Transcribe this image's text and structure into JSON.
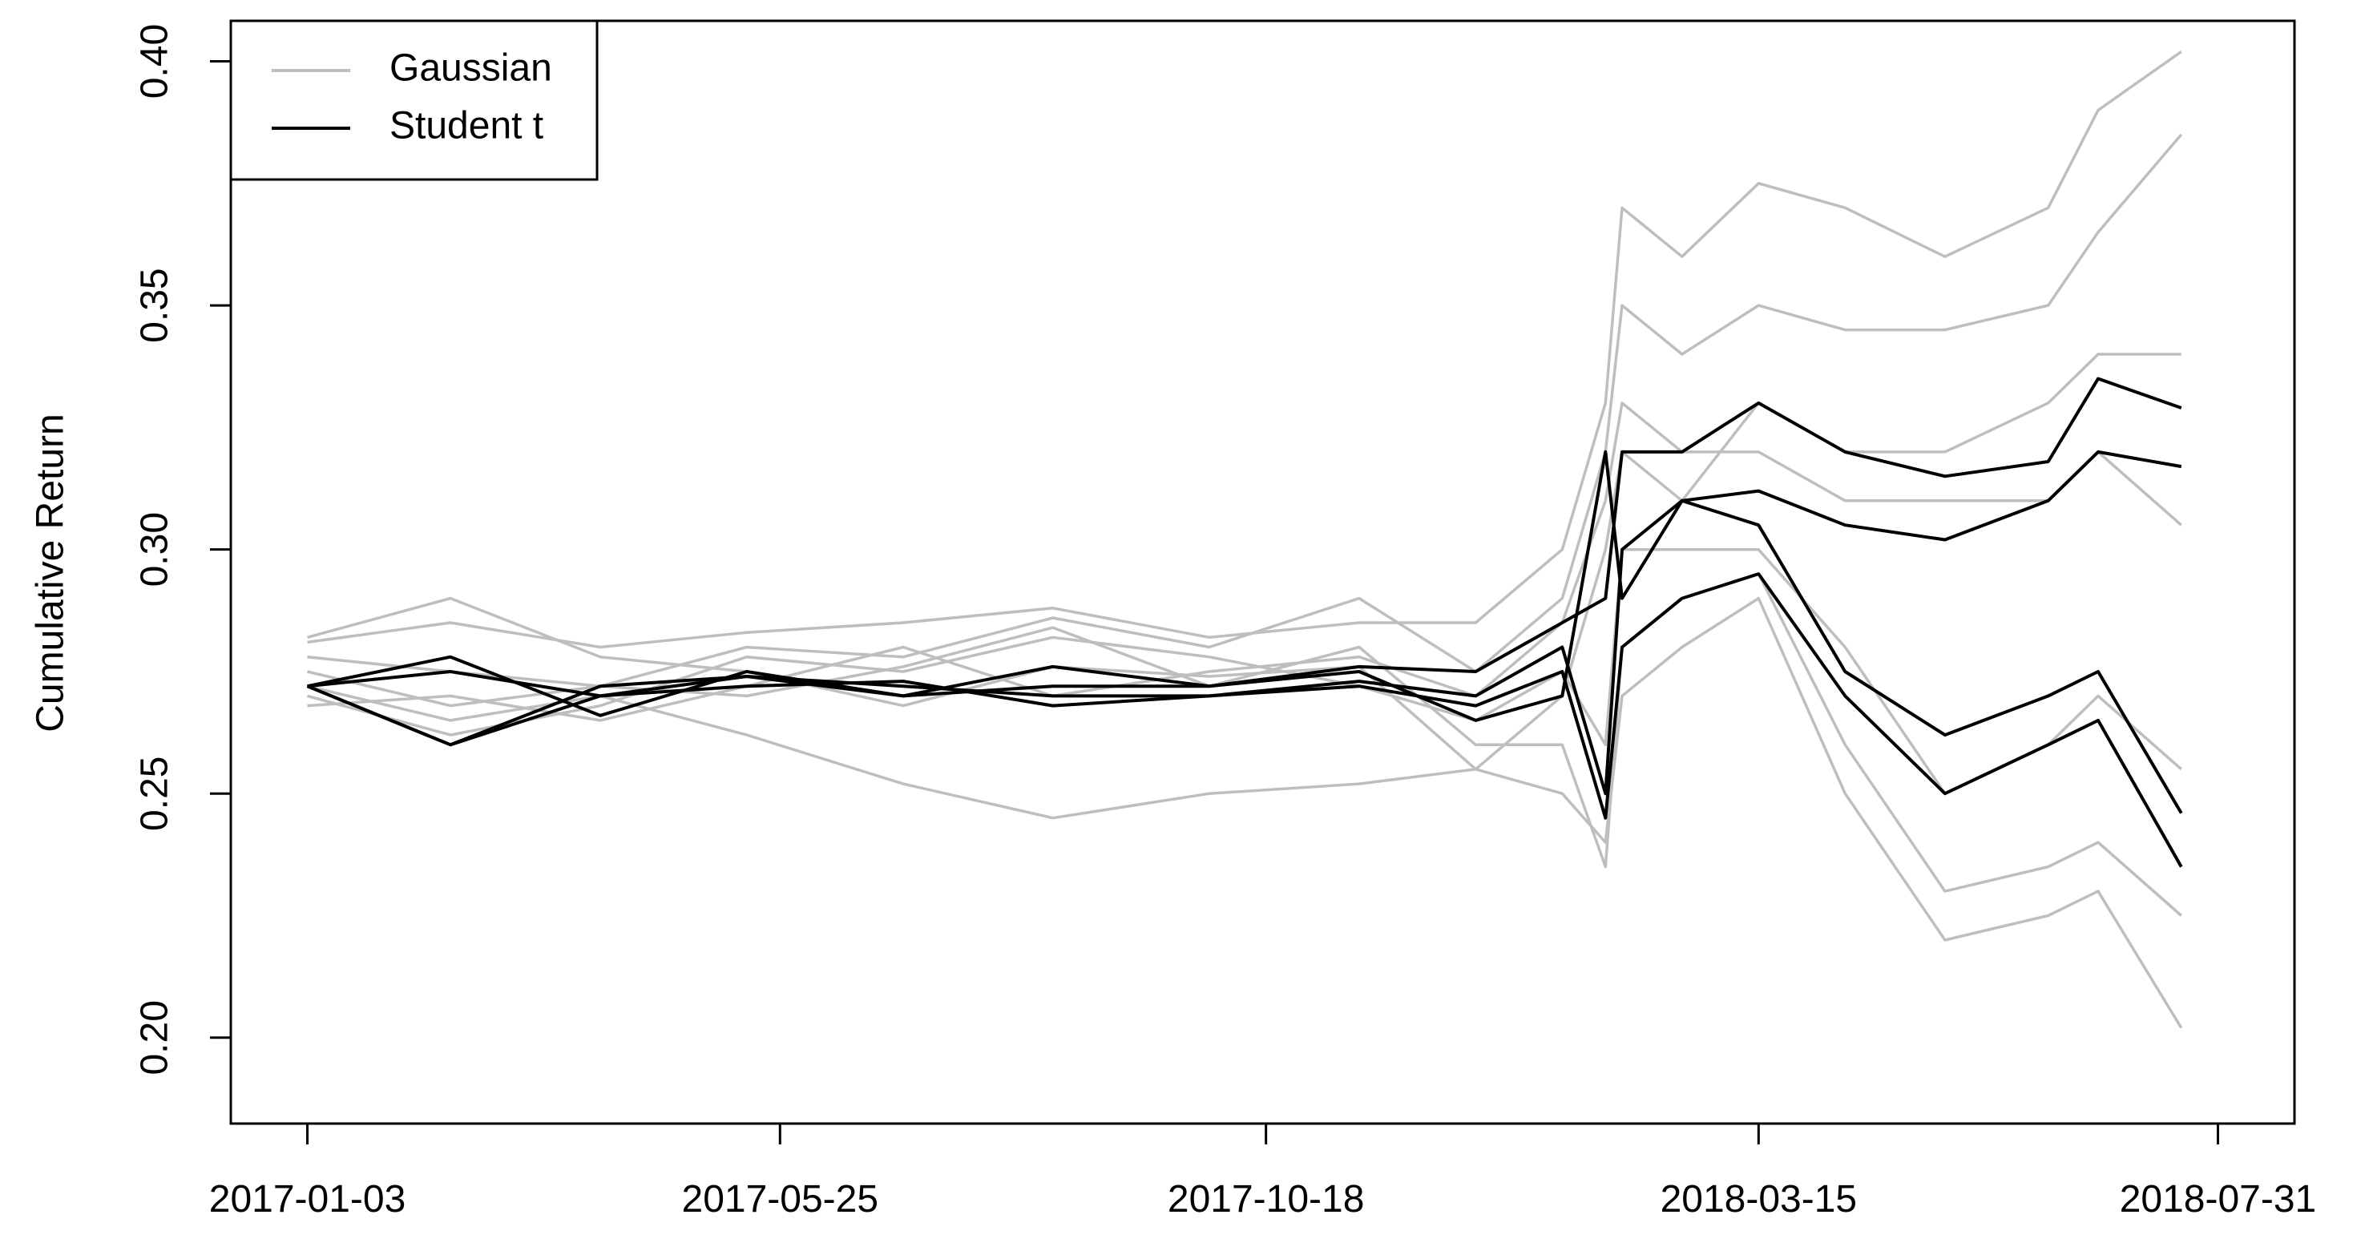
{
  "chart_data": {
    "type": "line",
    "ylabel": "Cumulative Return",
    "x": [
      "2017-01-03",
      "2017-02-15",
      "2017-04-01",
      "2017-05-15",
      "2017-07-01",
      "2017-08-15",
      "2017-10-01",
      "2017-11-15",
      "2017-12-20",
      "2018-01-15",
      "2018-01-28",
      "2018-02-02",
      "2018-02-20",
      "2018-03-15",
      "2018-04-10",
      "2018-05-10",
      "2018-06-10",
      "2018-06-25",
      "2018-07-20"
    ],
    "xlim": [
      "2016-12-11",
      "2018-08-23"
    ],
    "xticks": [
      "2017-01-03",
      "2017-05-25",
      "2017-10-18",
      "2018-03-15",
      "2018-07-31"
    ],
    "ylim": [
      0.1824,
      0.4083
    ],
    "yticks": [
      {
        "value": 0.2,
        "label": "0.20"
      },
      0.25,
      {
        "value": 0.3,
        "label": "0.30"
      },
      0.35,
      {
        "value": 0.4,
        "label": "0.40"
      }
    ],
    "legend": "topleft",
    "series": [
      {
        "name": "Gaussian",
        "color": "#bebebe",
        "values": [
          [
            0.281,
            0.285,
            0.28,
            0.283,
            0.285,
            0.288,
            0.282,
            0.285,
            0.285,
            0.3,
            0.33,
            0.37,
            0.36,
            0.375,
            0.37,
            0.36,
            0.37,
            0.39,
            0.402
          ],
          [
            0.275,
            0.268,
            0.272,
            0.28,
            0.278,
            0.286,
            0.28,
            0.29,
            0.275,
            0.29,
            0.32,
            0.35,
            0.34,
            0.35,
            0.345,
            0.345,
            0.35,
            0.365,
            0.385
          ],
          [
            0.272,
            0.265,
            0.27,
            0.262,
            0.252,
            0.245,
            0.25,
            0.252,
            0.255,
            0.27,
            0.3,
            0.32,
            0.31,
            0.33,
            0.32,
            0.32,
            0.33,
            0.34,
            0.34
          ],
          [
            0.27,
            0.262,
            0.268,
            0.278,
            0.275,
            0.282,
            0.278,
            0.272,
            0.265,
            0.275,
            0.26,
            0.3,
            0.3,
            0.3,
            0.28,
            0.25,
            0.26,
            0.27,
            0.255
          ],
          [
            0.278,
            0.275,
            0.272,
            0.27,
            0.276,
            0.284,
            0.272,
            0.28,
            0.26,
            0.26,
            0.235,
            0.28,
            0.29,
            0.295,
            0.26,
            0.23,
            0.235,
            0.24,
            0.225
          ],
          [
            0.282,
            0.29,
            0.278,
            0.275,
            0.268,
            0.276,
            0.274,
            0.276,
            0.255,
            0.25,
            0.24,
            0.27,
            0.28,
            0.29,
            0.25,
            0.22,
            0.225,
            0.23,
            0.202
          ],
          [
            0.268,
            0.27,
            0.265,
            0.272,
            0.28,
            0.27,
            0.275,
            0.278,
            0.27,
            0.285,
            0.31,
            0.33,
            0.32,
            0.32,
            0.31,
            0.31,
            0.31,
            0.32,
            0.305
          ]
        ]
      },
      {
        "name": "Student t",
        "color": "#000000",
        "values": [
          [
            0.272,
            0.275,
            0.27,
            0.274,
            0.27,
            0.276,
            0.272,
            0.276,
            0.275,
            0.285,
            0.29,
            0.32,
            0.32,
            0.33,
            0.32,
            0.315,
            0.318,
            0.335,
            0.329
          ],
          [
            0.272,
            0.26,
            0.272,
            0.274,
            0.272,
            0.27,
            0.27,
            0.273,
            0.27,
            0.28,
            0.25,
            0.3,
            0.31,
            0.312,
            0.305,
            0.302,
            0.31,
            0.32,
            0.317
          ],
          [
            0.272,
            0.278,
            0.266,
            0.275,
            0.27,
            0.272,
            0.272,
            0.275,
            0.265,
            0.27,
            0.32,
            0.29,
            0.31,
            0.305,
            0.275,
            0.262,
            0.27,
            0.275,
            0.246
          ],
          [
            0.272,
            0.26,
            0.27,
            0.272,
            0.273,
            0.268,
            0.27,
            0.272,
            0.268,
            0.275,
            0.245,
            0.28,
            0.29,
            0.295,
            0.27,
            0.25,
            0.26,
            0.265,
            0.235
          ]
        ]
      }
    ]
  }
}
